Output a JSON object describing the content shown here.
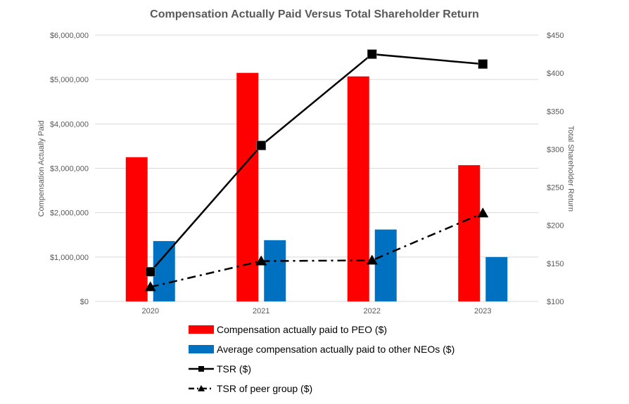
{
  "chart_data": {
    "type": "bar",
    "title": "Compensation Actually Paid Versus Total Shareholder Return",
    "categories": [
      "2020",
      "2021",
      "2022",
      "2023"
    ],
    "ylabel": "Compensation Actually Paid",
    "y2label": "Total Shareholder Return",
    "ylim": [
      0,
      6000000
    ],
    "y2lim": [
      100,
      450
    ],
    "yticks": [
      "$0",
      "$1,000,000",
      "$2,000,000",
      "$3,000,000",
      "$4,000,000",
      "$5,000,000",
      "$6,000,000"
    ],
    "y2ticks": [
      "$100",
      "$150",
      "$200",
      "$250",
      "$300",
      "$350",
      "$400",
      "$450"
    ],
    "grid": true,
    "legend_position": "bottom",
    "series": [
      {
        "name": "Compensation actually paid to PEO ($)",
        "kind": "bar",
        "axis": "left",
        "color": "#FF0000",
        "values": [
          3250000,
          5150000,
          5070000,
          3070000
        ]
      },
      {
        "name": "Average compensation actually paid to other NEOs ($)",
        "kind": "bar",
        "axis": "left",
        "color": "#0070C0",
        "values": [
          1360000,
          1380000,
          1620000,
          1000000
        ]
      },
      {
        "name": "TSR ($)",
        "kind": "line",
        "axis": "right",
        "color": "#000000",
        "marker": "square",
        "dash": "solid",
        "values": [
          139,
          305,
          425,
          412
        ]
      },
      {
        "name": "TSR of peer group ($)",
        "kind": "line",
        "axis": "right",
        "color": "#000000",
        "marker": "triangle",
        "dash": "dash-dot",
        "values": [
          119,
          153,
          154,
          216
        ]
      }
    ]
  }
}
